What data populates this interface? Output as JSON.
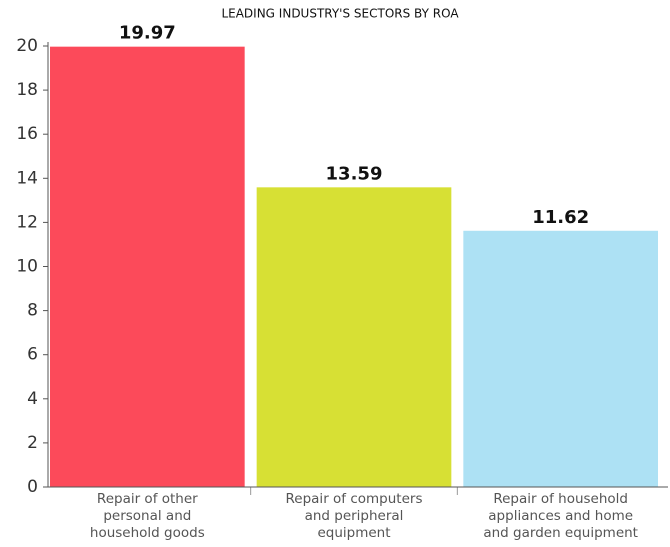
{
  "chart_data": {
    "type": "bar",
    "title": "LEADING INDUSTRY'S SECTORS BY ROA",
    "categories": [
      "Repair of other personal and household goods",
      "Repair of computers and peripheral equipment",
      "Repair of household appliances and home and garden equipment"
    ],
    "values": [
      19.97,
      13.59,
      11.62
    ],
    "colors": [
      "#fc4a5a",
      "#d7e034",
      "#ade1f4"
    ],
    "ylim": [
      0,
      20
    ],
    "yticks": [
      0,
      2,
      4,
      6,
      8,
      10,
      12,
      14,
      16,
      18,
      20
    ],
    "grid": false
  }
}
